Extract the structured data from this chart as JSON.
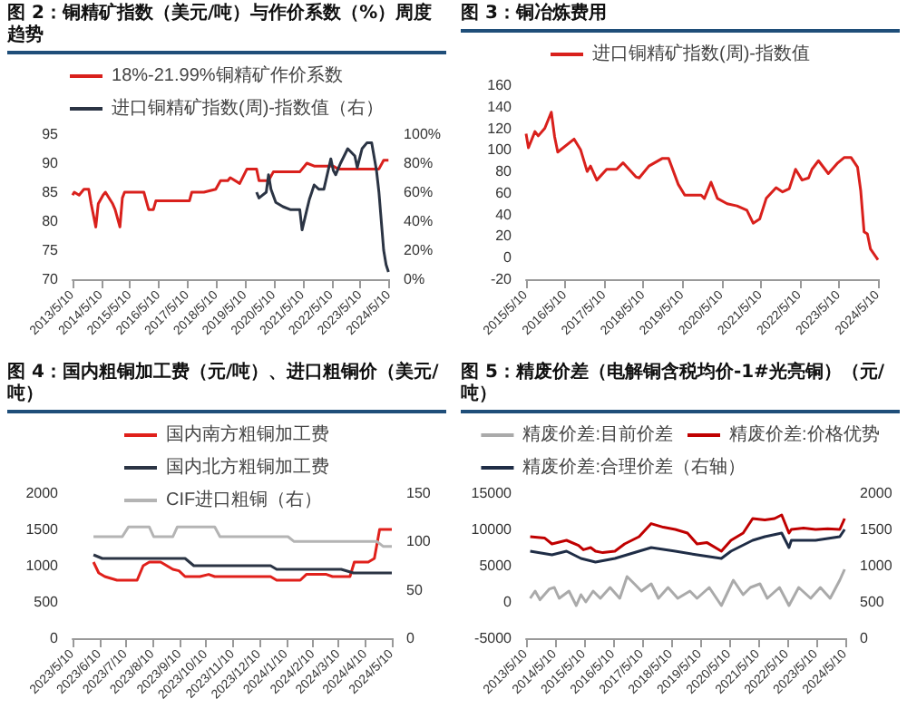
{
  "chart_data": [
    {
      "type": "line",
      "title": "图 2：铜精矿指数（美元/吨）与作价系数（%）周度趋势",
      "legend": "top",
      "grid": false,
      "marker": "none",
      "xlim": [
        "2013-05-10",
        "2024-05-10"
      ],
      "xticks": [
        {
          "value": "2013-05-10",
          "label": "2013/5/10"
        },
        {
          "value": "2014-05-10",
          "label": "2014/5/10"
        },
        {
          "value": "2015-05-10",
          "label": "2015/5/10"
        },
        {
          "value": "2016-05-10",
          "label": "2016/5/10"
        },
        {
          "value": "2017-05-10",
          "label": "2017/5/10"
        },
        {
          "value": "2018-05-10",
          "label": "2018/5/10"
        },
        {
          "value": "2019-05-10",
          "label": "2019/5/10"
        },
        {
          "value": "2020-05-10",
          "label": "2020/5/10"
        },
        {
          "value": "2021-05-10",
          "label": "2021/5/10"
        },
        {
          "value": "2022-05-10",
          "label": "2022/5/10"
        },
        {
          "value": "2023-05-10",
          "label": "2023/5/10"
        },
        {
          "value": "2024-05-10",
          "label": "2024/5/10"
        }
      ],
      "ylim": [
        70,
        95
      ],
      "yticks": [
        70,
        75,
        80,
        85,
        90,
        95
      ],
      "y2lim": [
        0,
        100
      ],
      "y2ticks": [
        {
          "value": 0,
          "label": "0%"
        },
        {
          "value": 20,
          "label": "20%"
        },
        {
          "value": 40,
          "label": "40%"
        },
        {
          "value": 60,
          "label": "60%"
        },
        {
          "value": 80,
          "label": "80%"
        },
        {
          "value": 100,
          "label": "100%"
        }
      ],
      "series": [
        {
          "name": "18%-21.99%铜精矿作价系数",
          "color": "#d9201c",
          "x": [
            "2013-05-10",
            "2013-06",
            "2013-08",
            "2013-10",
            "2013-12",
            "2014-01",
            "2014-03",
            "2014-04",
            "2014-06",
            "2014-07",
            "2014-10",
            "2014-11",
            "2015-01",
            "2015-02",
            "2015-03",
            "2015-11",
            "2016-01",
            "2016-03",
            "2016-04",
            "2017-06",
            "2017-07",
            "2017-12",
            "2018-05",
            "2018-07",
            "2018-10",
            "2018-11",
            "2019-03",
            "2019-06",
            "2019-10",
            "2019-11",
            "2020-03",
            "2020-05",
            "2021-04",
            "2021-07",
            "2021-10",
            "2022-06",
            "2022-08",
            "2024-01",
            "2024-03",
            "2024-05"
          ],
          "values": [
            84.5,
            85,
            84.5,
            85.5,
            85.5,
            83,
            79,
            83,
            84.5,
            85,
            83,
            82,
            79,
            84,
            85,
            85,
            82,
            82,
            83.5,
            83.5,
            85,
            85,
            85.5,
            87,
            87,
            87.5,
            86.5,
            89,
            89,
            87,
            87,
            88.5,
            88.5,
            90,
            89.5,
            89.5,
            89,
            89,
            90.5,
            90.5
          ]
        },
        {
          "name": "进口铜精矿指数(周)-指数值（右）",
          "color": "#2b3444",
          "axis": "y2",
          "x": [
            "2019-10",
            "2019-11",
            "2020-02",
            "2020-03",
            "2020-04",
            "2020-06",
            "2020-09",
            "2020-12",
            "2021-04",
            "2021-05",
            "2021-07",
            "2021-08",
            "2021-09",
            "2021-10",
            "2021-12",
            "2022-02",
            "2022-05",
            "2022-06",
            "2022-07",
            "2022-08",
            "2022-09",
            "2022-12",
            "2023-03",
            "2023-04",
            "2023-06",
            "2023-08",
            "2023-10",
            "2023-12",
            "2024-01",
            "2024-03",
            "2024-04",
            "2024-05"
          ],
          "values": [
            60,
            56,
            60,
            72,
            62,
            53,
            50,
            48,
            48,
            34,
            48,
            55,
            60,
            65,
            62,
            62,
            83,
            75,
            72,
            76,
            80,
            90,
            85,
            77,
            90,
            94,
            94,
            75,
            60,
            20,
            10,
            5
          ]
        }
      ]
    },
    {
      "type": "line",
      "title": "图 3：铜冶炼费用",
      "legend": "top",
      "grid": false,
      "marker": "none",
      "xlim": [
        "2015-05-10",
        "2024-05-10"
      ],
      "xticks": [
        {
          "value": "2015-05-10",
          "label": "2015/5/10"
        },
        {
          "value": "2016-05-10",
          "label": "2016/5/10"
        },
        {
          "value": "2017-05-10",
          "label": "2017/5/10"
        },
        {
          "value": "2018-05-10",
          "label": "2018/5/10"
        },
        {
          "value": "2019-05-10",
          "label": "2019/5/10"
        },
        {
          "value": "2020-05-10",
          "label": "2020/5/10"
        },
        {
          "value": "2021-05-10",
          "label": "2021/5/10"
        },
        {
          "value": "2022-05-10",
          "label": "2022/5/10"
        },
        {
          "value": "2023-05-10",
          "label": "2023/5/10"
        },
        {
          "value": "2024-05-10",
          "label": "2024/5/10"
        }
      ],
      "ylim": [
        -20,
        160
      ],
      "yticks": [
        -20,
        0,
        20,
        40,
        60,
        80,
        100,
        120,
        140,
        160
      ],
      "series": [
        {
          "name": "进口铜精矿指数(周)-指数值",
          "color": "#d9201c",
          "x": [
            "2015-05-10",
            "2015-06",
            "2015-08",
            "2015-09",
            "2015-11",
            "2016-01",
            "2016-02",
            "2016-03",
            "2016-08",
            "2016-10",
            "2016-12",
            "2017-01",
            "2017-03",
            "2017-06",
            "2017-09",
            "2017-11",
            "2018-03",
            "2018-04",
            "2018-07",
            "2018-11",
            "2019-01",
            "2019-04",
            "2019-06",
            "2019-11",
            "2019-12",
            "2020-02",
            "2020-04",
            "2020-07",
            "2020-10",
            "2021-01",
            "2021-03",
            "2021-05",
            "2021-07",
            "2021-10",
            "2021-12",
            "2022-02",
            "2022-04",
            "2022-06",
            "2022-08",
            "2022-09",
            "2022-11",
            "2023-02",
            "2023-05",
            "2023-07",
            "2023-09",
            "2023-11",
            "2023-12",
            "2024-01",
            "2024-02",
            "2024-03",
            "2024-05-10"
          ],
          "values": [
            115,
            102,
            117,
            113,
            120,
            135,
            112,
            98,
            110,
            100,
            80,
            85,
            72,
            82,
            82,
            88,
            75,
            74,
            85,
            92,
            92,
            68,
            58,
            58,
            55,
            70,
            55,
            50,
            48,
            44,
            32,
            36,
            55,
            65,
            61,
            64,
            82,
            72,
            74,
            82,
            90,
            78,
            88,
            93,
            93,
            84,
            62,
            24,
            22,
            8,
            -2
          ]
        }
      ]
    },
    {
      "type": "line",
      "title": "图 4：国内粗铜加工费（元/吨）、进口粗铜价（美元/吨）",
      "legend": "top",
      "grid": false,
      "marker": "none",
      "xlim": [
        "2023-05-10",
        "2024-05-10"
      ],
      "xticks": [
        {
          "value": "2023-05-10",
          "label": "2023/5/10"
        },
        {
          "value": "2023-06-10",
          "label": "2023/6/10"
        },
        {
          "value": "2023-07-10",
          "label": "2023/7/10"
        },
        {
          "value": "2023-08-10",
          "label": "2023/8/10"
        },
        {
          "value": "2023-09-10",
          "label": "2023/9/10"
        },
        {
          "value": "2023-10-10",
          "label": "2023/10/10"
        },
        {
          "value": "2023-11-10",
          "label": "2023/11/10"
        },
        {
          "value": "2023-12-10",
          "label": "2023/12/10"
        },
        {
          "value": "2024-01-10",
          "label": "2024/1/10"
        },
        {
          "value": "2024-02-10",
          "label": "2024/2/10"
        },
        {
          "value": "2024-03-10",
          "label": "2024/3/10"
        },
        {
          "value": "2024-04-10",
          "label": "2024/4/10"
        },
        {
          "value": "2024-05-10",
          "label": "2024/5/10"
        }
      ],
      "ylim": [
        0,
        2000
      ],
      "yticks": [
        0,
        500,
        1000,
        1500,
        2000
      ],
      "y2lim": [
        0,
        150
      ],
      "y2ticks": [
        0,
        50,
        100,
        150
      ],
      "series": [
        {
          "name": "国内南方粗铜加工费",
          "color": "#e0201b",
          "x": [
            "2023-06-03",
            "2023-06-09",
            "2023-06-16",
            "2023-06-30",
            "2023-07-23",
            "2023-07-30",
            "2023-08-06",
            "2023-08-19",
            "2023-09-02",
            "2023-09-09",
            "2023-09-16",
            "2023-10-03",
            "2023-10-13",
            "2023-10-20",
            "2023-12-23",
            "2023-12-30",
            "2024-01-26",
            "2024-02-02",
            "2024-02-25",
            "2024-03-03",
            "2024-03-23",
            "2024-03-28",
            "2024-04-13",
            "2024-04-20",
            "2024-04-26",
            "2024-05-10"
          ],
          "values": [
            1050,
            900,
            850,
            800,
            800,
            1000,
            1050,
            1050,
            950,
            930,
            850,
            850,
            880,
            850,
            850,
            800,
            800,
            880,
            880,
            850,
            850,
            1050,
            1050,
            1100,
            1500,
            1500
          ]
        },
        {
          "name": "国内北方粗铜加工费",
          "color": "#2b3444",
          "x": [
            "2023-06-03",
            "2023-06-13",
            "2023-09-16",
            "2023-09-26",
            "2023-12-23",
            "2023-12-30",
            "2024-03-13",
            "2024-03-27",
            "2024-05-10"
          ],
          "values": [
            1150,
            1100,
            1100,
            1000,
            1000,
            950,
            950,
            900,
            900
          ]
        },
        {
          "name": "CIF进口粗铜（右）",
          "color": "#b4b4b4",
          "axis": "y2",
          "x": [
            "2023-06-03",
            "2023-07-06",
            "2023-07-13",
            "2023-08-06",
            "2023-08-11",
            "2023-09-02",
            "2023-09-07",
            "2023-10-20",
            "2023-10-26",
            "2024-01-12",
            "2024-01-19",
            "2024-04-23",
            "2024-04-30",
            "2024-05-10"
          ],
          "values": [
            105,
            105,
            115,
            115,
            105,
            105,
            115,
            115,
            105,
            105,
            100,
            100,
            95,
            95
          ]
        }
      ]
    },
    {
      "type": "line",
      "title": "图 5：精废价差（电解铜含税均价-1#光亮铜）（元/吨）",
      "legend": "top",
      "grid": false,
      "marker": "none",
      "xlim": [
        "2013-05-10",
        "2024-05-10"
      ],
      "xticks": [
        {
          "value": "2013-05-10",
          "label": "2013/5/10"
        },
        {
          "value": "2014-05-10",
          "label": "2014/5/10"
        },
        {
          "value": "2015-05-10",
          "label": "2015/5/10"
        },
        {
          "value": "2016-05-10",
          "label": "2016/5/10"
        },
        {
          "value": "2017-05-10",
          "label": "2017/5/10"
        },
        {
          "value": "2018-05-10",
          "label": "2018/5/10"
        },
        {
          "value": "2019-05-10",
          "label": "2019/5/10"
        },
        {
          "value": "2020-05-10",
          "label": "2020/5/10"
        },
        {
          "value": "2021-05-10",
          "label": "2021/5/10"
        },
        {
          "value": "2022-05-10",
          "label": "2022/5/10"
        },
        {
          "value": "2023-05-10",
          "label": "2023/5/10"
        },
        {
          "value": "2024-05-10",
          "label": "2024/5/10"
        }
      ],
      "ylim": [
        -5000,
        15000
      ],
      "yticks": [
        -5000,
        0,
        5000,
        10000,
        15000
      ],
      "y2lim": [
        0,
        2000
      ],
      "y2ticks": [
        0,
        500,
        1000,
        1500,
        2000
      ],
      "series": [
        {
          "name": "精废价差:目前价差",
          "color": "#aaaaaa",
          "x": [
            "2013-07",
            "2013-09",
            "2013-11",
            "2014-03",
            "2014-05",
            "2014-07",
            "2014-11",
            "2015-02",
            "2015-04",
            "2015-06",
            "2015-09",
            "2015-12",
            "2016-04",
            "2016-08",
            "2016-11",
            "2017-02",
            "2017-05",
            "2017-09",
            "2017-12",
            "2018-04",
            "2018-08",
            "2019-01",
            "2019-04",
            "2019-09",
            "2020-02",
            "2020-07",
            "2020-11",
            "2021-02",
            "2021-06",
            "2021-09",
            "2022-02",
            "2022-06",
            "2022-10",
            "2023-03",
            "2023-07",
            "2023-11",
            "2024-03",
            "2024-05"
          ],
          "values": [
            500,
            1500,
            300,
            1800,
            2000,
            500,
            1500,
            -500,
            1000,
            0,
            1500,
            500,
            2000,
            500,
            3500,
            2500,
            1500,
            2500,
            500,
            2000,
            500,
            1500,
            500,
            2000,
            -500,
            3000,
            1000,
            2000,
            2500,
            500,
            2000,
            -500,
            2000,
            500,
            2000,
            500,
            3000,
            4500
          ]
        },
        {
          "name": "精废价差:价格优势",
          "color": "#c00000",
          "x": [
            "2013-07",
            "2014-01",
            "2014-04",
            "2014-10",
            "2015-03",
            "2015-05",
            "2015-08",
            "2015-10",
            "2016-01",
            "2016-06",
            "2016-10",
            "2017-04",
            "2017-09",
            "2018-02",
            "2018-07",
            "2018-12",
            "2019-04",
            "2019-08",
            "2020-02",
            "2020-06",
            "2020-11",
            "2021-03",
            "2021-08",
            "2021-12",
            "2022-03",
            "2022-06",
            "2022-07",
            "2022-12",
            "2023-05",
            "2023-10",
            "2024-03",
            "2024-05"
          ],
          "values": [
            9000,
            8800,
            8000,
            8500,
            7800,
            7200,
            7500,
            7000,
            6800,
            7000,
            8000,
            9000,
            10800,
            10300,
            10000,
            9500,
            8000,
            8200,
            7000,
            8500,
            9500,
            11500,
            11300,
            11500,
            12000,
            9500,
            10000,
            10200,
            10000,
            10100,
            10000,
            11500
          ]
        },
        {
          "name": "精废价差:合理价差（右轴）",
          "color": "#1f2d46",
          "axis": "y2",
          "x": [
            "2013-07",
            "2014-04",
            "2014-10",
            "2015-04",
            "2015-10",
            "2016-06",
            "2017-04",
            "2017-09",
            "2018-07",
            "2019-04",
            "2020-02",
            "2020-06",
            "2021-03",
            "2021-08",
            "2022-03",
            "2022-06",
            "2022-07",
            "2023-05",
            "2024-03",
            "2024-05"
          ],
          "values": [
            1200,
            1150,
            1200,
            1100,
            1050,
            1100,
            1200,
            1250,
            1200,
            1150,
            1100,
            1200,
            1350,
            1400,
            1450,
            1250,
            1350,
            1350,
            1400,
            1500
          ]
        }
      ]
    }
  ]
}
